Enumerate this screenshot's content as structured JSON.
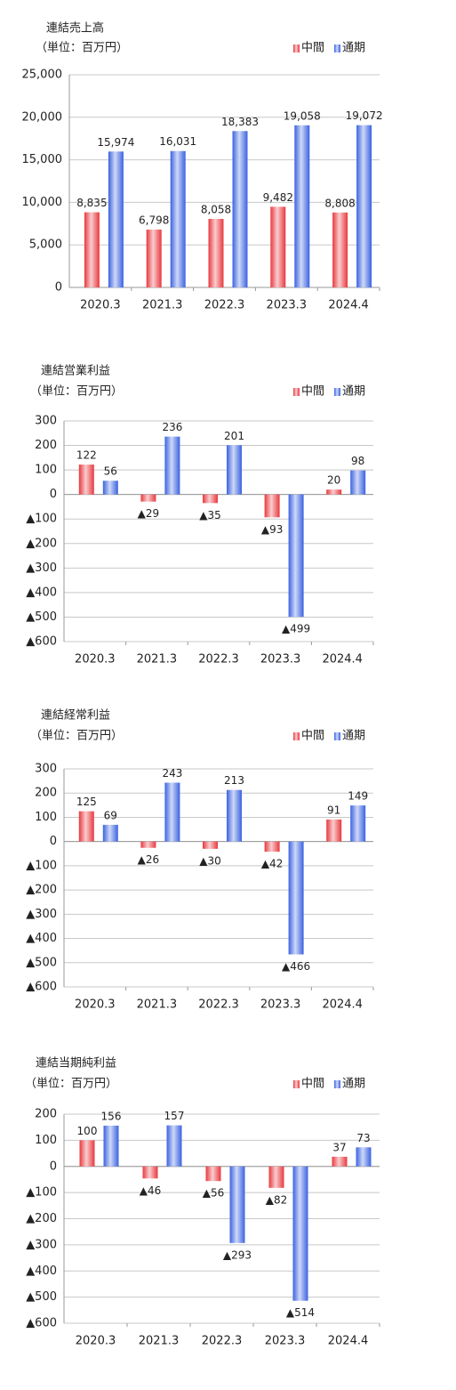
{
  "chart_data": [
    {
      "type": "bar",
      "title": "連結売上高",
      "subtitle": "（単位：百万円）",
      "categories": [
        "2020.3",
        "2021.3",
        "2022.3",
        "2023.3",
        "2024.4"
      ],
      "series": [
        {
          "name": "中間",
          "color": "#e8383d",
          "values": [
            8835,
            6798,
            8058,
            9482,
            8808
          ],
          "value_labels": [
            "8,835",
            "6,798",
            "8,058",
            "9,482",
            "8,808"
          ]
        },
        {
          "name": "通期",
          "color": "#3a62e0",
          "values": [
            15974,
            16031,
            18383,
            19058,
            19072
          ],
          "value_labels": [
            "15,974",
            "16,031",
            "18,383",
            "19,058",
            "19,072"
          ]
        }
      ],
      "ylim": [
        0,
        25000
      ],
      "yticks": [
        0,
        {
          "value": 5000,
          "label": "5,000"
        },
        {
          "value": 10000,
          "label": "10,000"
        },
        {
          "value": 15000,
          "label": "15,000"
        },
        {
          "value": 20000,
          "label": "20,000"
        },
        {
          "value": 25000,
          "label": "25,000"
        }
      ],
      "grid": true,
      "legend": "top-right"
    },
    {
      "type": "bar",
      "title": "連結営業利益",
      "subtitle": "（単位：百万円）",
      "categories": [
        "2020.3",
        "2021.3",
        "2022.3",
        "2023.3",
        "2024.4"
      ],
      "series": [
        {
          "name": "中間",
          "color": "#e8383d",
          "values": [
            122,
            -29,
            -35,
            -93,
            20
          ],
          "value_labels": [
            "122",
            "▲29",
            "▲35",
            "▲93",
            "20"
          ]
        },
        {
          "name": "通期",
          "color": "#3a62e0",
          "values": [
            56,
            236,
            201,
            -499,
            98
          ],
          "value_labels": [
            "56",
            "236",
            "201",
            "▲499",
            "98"
          ]
        }
      ],
      "ylim": [
        -600,
        300
      ],
      "yticks": [
        {
          "value": -600,
          "label": "▲600"
        },
        {
          "value": -500,
          "label": "▲500"
        },
        {
          "value": -400,
          "label": "▲400"
        },
        {
          "value": -300,
          "label": "▲300"
        },
        {
          "value": -200,
          "label": "▲200"
        },
        {
          "value": -100,
          "label": "▲100"
        },
        0,
        100,
        200,
        300
      ],
      "grid": true,
      "legend": "top-right"
    },
    {
      "type": "bar",
      "title": "連結経常利益",
      "subtitle": "（単位：百万円）",
      "categories": [
        "2020.3",
        "2021.3",
        "2022.3",
        "2023.3",
        "2024.4"
      ],
      "series": [
        {
          "name": "中間",
          "color": "#e8383d",
          "values": [
            125,
            -26,
            -30,
            -42,
            91
          ],
          "value_labels": [
            "125",
            "▲26",
            "▲30",
            "▲42",
            "91"
          ]
        },
        {
          "name": "通期",
          "color": "#3a62e0",
          "values": [
            69,
            243,
            213,
            -466,
            149
          ],
          "value_labels": [
            "69",
            "243",
            "213",
            "▲466",
            "149"
          ]
        }
      ],
      "ylim": [
        -600,
        300
      ],
      "yticks": [
        {
          "value": -600,
          "label": "▲600"
        },
        {
          "value": -500,
          "label": "▲500"
        },
        {
          "value": -400,
          "label": "▲400"
        },
        {
          "value": -300,
          "label": "▲300"
        },
        {
          "value": -200,
          "label": "▲200"
        },
        {
          "value": -100,
          "label": "▲100"
        },
        0,
        100,
        200,
        300
      ],
      "grid": true,
      "legend": "top-right"
    },
    {
      "type": "bar",
      "title": "連結当期純利益",
      "subtitle": "（単位：百万円）",
      "categories": [
        "2020.3",
        "2021.3",
        "2022.3",
        "2023.3",
        "2024.4"
      ],
      "series": [
        {
          "name": "中間",
          "color": "#e8383d",
          "values": [
            100,
            -46,
            -56,
            -82,
            37
          ],
          "value_labels": [
            "100",
            "▲46",
            "▲56",
            "▲82",
            "37"
          ]
        },
        {
          "name": "通期",
          "color": "#3a62e0",
          "values": [
            156,
            157,
            -293,
            -514,
            73
          ],
          "value_labels": [
            "156",
            "157",
            "▲293",
            "▲514",
            "73"
          ]
        }
      ],
      "ylim": [
        -600,
        200
      ],
      "yticks": [
        {
          "value": -600,
          "label": "▲600"
        },
        {
          "value": -500,
          "label": "▲500"
        },
        {
          "value": -400,
          "label": "▲400"
        },
        {
          "value": -300,
          "label": "▲300"
        },
        {
          "value": -200,
          "label": "▲200"
        },
        {
          "value": -100,
          "label": "▲100"
        },
        0,
        100,
        200
      ],
      "grid": true,
      "legend": "top-right"
    }
  ]
}
